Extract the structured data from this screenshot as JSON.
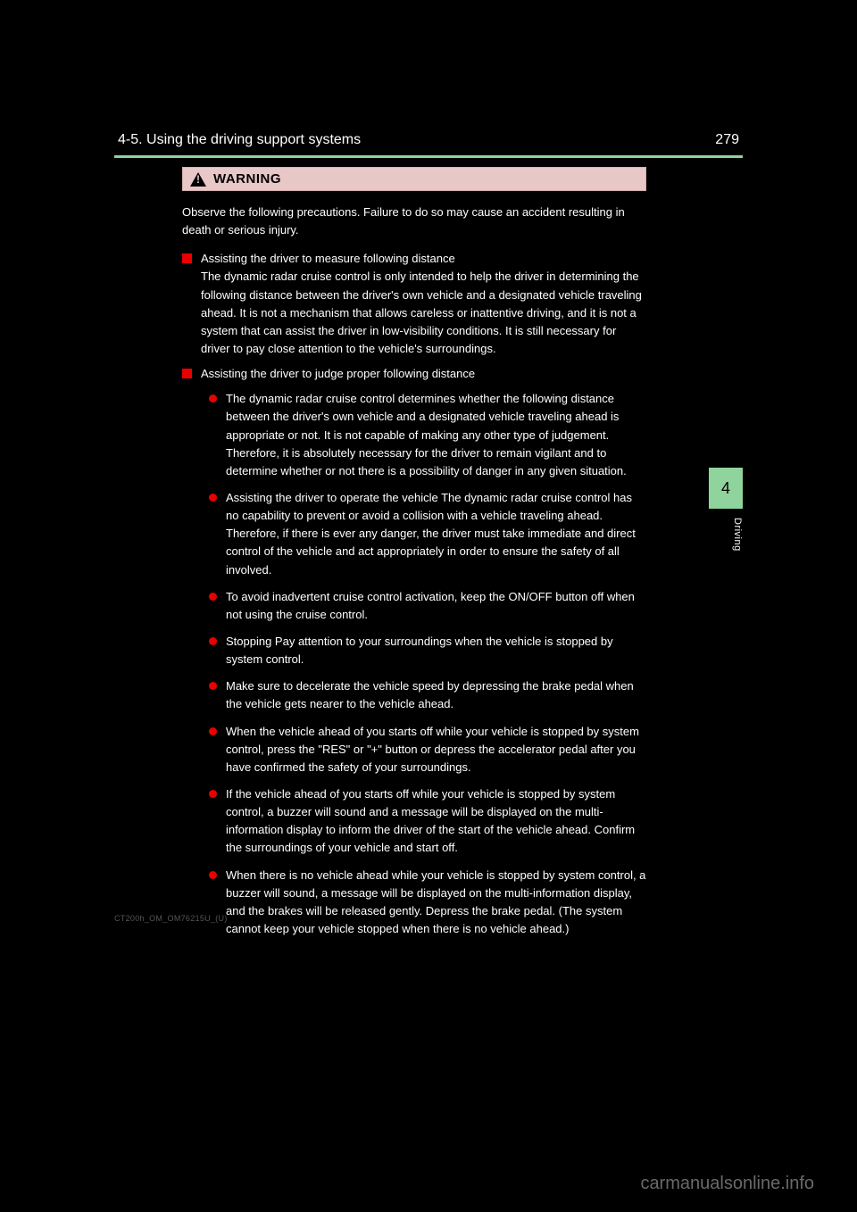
{
  "header": {
    "page_number": "279",
    "section": "4-5. Using the driving support systems"
  },
  "colors": {
    "accent_green": "#8fd39d",
    "warning_bg": "#e8c7c7",
    "bullet_red": "#e80000",
    "text": "#ffffff",
    "background": "#000000",
    "watermark": "#6a6a6a"
  },
  "warning": {
    "label": "WARNING",
    "intro": "Observe the following precautions.\nFailure to do so may cause an accident resulting in death or serious injury.",
    "sections": [
      {
        "title": "Assisting the driver to measure following distance",
        "body": "The dynamic radar cruise control is only intended to help the driver in determining the following distance between the driver's own vehicle and a designated vehicle traveling ahead. It is not a mechanism that allows careless or inattentive driving, and it is not a system that can assist the driver in low-visibility conditions. It is still necessary for driver to pay close attention to the vehicle's surroundings.",
        "bullets": []
      },
      {
        "title": "Assisting the driver to judge proper following distance",
        "body": "",
        "bullets": [
          "The dynamic radar cruise control determines whether the following distance between the driver's own vehicle and a designated vehicle traveling ahead is appropriate or not. It is not capable of making any other type of judgement. Therefore, it is absolutely necessary for the driver to remain vigilant and to determine whether or not there is a possibility of danger in any given situation.",
          "Assisting the driver to operate the vehicle\nThe dynamic radar cruise control has no capability to prevent or avoid a collision with a vehicle traveling ahead. Therefore, if there is ever any danger, the driver must take immediate and direct control of the vehicle and act appropriately in order to ensure the safety of all involved.",
          "To avoid inadvertent cruise control activation, keep the ON/OFF button off when not using the cruise control.",
          "Stopping\nPay attention to your surroundings when the vehicle is stopped by system control.",
          "Make sure to decelerate the vehicle speed by depressing the brake pedal when the vehicle gets nearer to the vehicle ahead.",
          "When the vehicle ahead of you starts off while your vehicle is stopped by system control, press the \"RES\" or \"+\" button or depress the accelerator pedal after you have confirmed the safety of your surroundings.",
          "If the vehicle ahead of you starts off while your vehicle is stopped by system control, a buzzer will sound and a message will be displayed on the multi-information display to inform the driver of the start of the vehicle ahead. Confirm the surroundings of your vehicle and start off.",
          "When there is no vehicle ahead while your vehicle is stopped by system control, a buzzer will sound, a message will be displayed on the multi-information display, and the brakes will be released gently. Depress the brake pedal. (The system cannot keep your vehicle stopped when there is no vehicle ahead.)"
        ]
      }
    ]
  },
  "side_tab": {
    "number": "4",
    "label": "Driving"
  },
  "footer": "CT200h_OM_OM76215U_(U)",
  "watermark": "carmanualsonline.info"
}
